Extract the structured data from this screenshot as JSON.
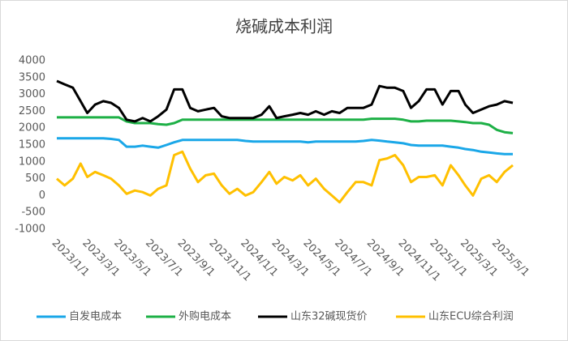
{
  "chart_data": {
    "type": "line",
    "title": "烧碱成本利润",
    "x": [
      "2023/1/1",
      "2023/1/16",
      "2023/2/1",
      "2023/2/16",
      "2023/3/1",
      "2023/3/16",
      "2023/4/1",
      "2023/4/16",
      "2023/5/1",
      "2023/5/16",
      "2023/6/1",
      "2023/6/16",
      "2023/7/1",
      "2023/7/16",
      "2023/8/1",
      "2023/8/16",
      "2023/9/1",
      "2023/9/16",
      "2023/10/1",
      "2023/10/16",
      "2023/11/1",
      "2023/11/16",
      "2023/12/1",
      "2023/12/16",
      "2024/1/1",
      "2024/1/16",
      "2024/2/1",
      "2024/2/16",
      "2024/3/1",
      "2024/3/16",
      "2024/4/1",
      "2024/4/16",
      "2024/5/1",
      "2024/5/16",
      "2024/6/1",
      "2024/6/16",
      "2024/7/1",
      "2024/7/16",
      "2024/8/1",
      "2024/8/16",
      "2024/9/1",
      "2024/9/16",
      "2024/10/1",
      "2024/10/16",
      "2024/11/1",
      "2024/11/16",
      "2024/12/1",
      "2024/12/16",
      "2025/1/1",
      "2025/1/16",
      "2025/2/1",
      "2025/2/16",
      "2025/3/1",
      "2025/3/16",
      "2025/4/1",
      "2025/4/16",
      "2025/5/1",
      "2025/5/16",
      "2025/6/1"
    ],
    "series": [
      {
        "name": "自发电成本",
        "color": "#1aa7e8",
        "values": [
          1700,
          1700,
          1700,
          1700,
          1700,
          1700,
          1700,
          1680,
          1650,
          1450,
          1450,
          1480,
          1450,
          1420,
          1500,
          1580,
          1650,
          1650,
          1650,
          1650,
          1650,
          1650,
          1650,
          1650,
          1620,
          1600,
          1600,
          1600,
          1600,
          1600,
          1600,
          1600,
          1580,
          1600,
          1600,
          1600,
          1600,
          1600,
          1600,
          1620,
          1650,
          1630,
          1600,
          1580,
          1550,
          1500,
          1480,
          1480,
          1480,
          1480,
          1450,
          1420,
          1380,
          1350,
          1300,
          1280,
          1250,
          1230,
          1230
        ]
      },
      {
        "name": "外购电成本",
        "color": "#1db046",
        "values": [
          2320,
          2320,
          2320,
          2320,
          2320,
          2320,
          2320,
          2320,
          2320,
          2200,
          2150,
          2150,
          2150,
          2120,
          2100,
          2150,
          2250,
          2250,
          2250,
          2250,
          2250,
          2250,
          2250,
          2250,
          2250,
          2250,
          2250,
          2250,
          2250,
          2250,
          2250,
          2250,
          2250,
          2250,
          2250,
          2250,
          2250,
          2250,
          2250,
          2250,
          2280,
          2280,
          2280,
          2280,
          2250,
          2200,
          2200,
          2220,
          2220,
          2220,
          2220,
          2200,
          2180,
          2150,
          2150,
          2100,
          1950,
          1880,
          1850
        ]
      },
      {
        "name": "山东32碱现货价",
        "color": "#000000",
        "values": [
          3400,
          3300,
          3200,
          2800,
          2450,
          2700,
          2800,
          2750,
          2600,
          2250,
          2200,
          2300,
          2200,
          2350,
          2550,
          3150,
          3150,
          2600,
          2500,
          2550,
          2600,
          2350,
          2300,
          2300,
          2300,
          2300,
          2400,
          2650,
          2300,
          2350,
          2400,
          2450,
          2400,
          2500,
          2400,
          2500,
          2450,
          2600,
          2600,
          2600,
          2700,
          3250,
          3200,
          3200,
          3100,
          2600,
          2800,
          3150,
          3150,
          2700,
          3100,
          3100,
          2700,
          2450,
          2550,
          2650,
          2700,
          2800,
          2750
        ]
      },
      {
        "name": "山东ECU综合利润",
        "color": "#ffc000",
        "values": [
          500,
          300,
          500,
          950,
          550,
          700,
          600,
          500,
          300,
          50,
          150,
          100,
          0,
          200,
          300,
          1200,
          1300,
          800,
          400,
          600,
          650,
          300,
          50,
          200,
          0,
          100,
          400,
          700,
          350,
          550,
          450,
          600,
          300,
          500,
          200,
          0,
          -200,
          100,
          400,
          400,
          300,
          1050,
          1100,
          1200,
          900,
          400,
          550,
          550,
          600,
          300,
          900,
          600,
          300,
          0,
          500,
          600,
          400,
          700,
          900
        ]
      }
    ],
    "xlim": [
      "2023/1/1",
      "2025/6/1"
    ],
    "xticks": [
      "2023/1/1",
      "2023/3/1",
      "2023/5/1",
      "2023/7/1",
      "2023/9/1",
      "2023/11/1",
      "2024/1/1",
      "2024/3/1",
      "2024/5/1",
      "2024/7/1",
      "2024/9/1",
      "2024/11/1",
      "2025/1/1",
      "2025/3/1",
      "2025/5/1"
    ],
    "ylim": [
      -1000,
      4000
    ],
    "yticks": [
      -1000,
      -500,
      0,
      500,
      1000,
      1500,
      2000,
      2500,
      3000,
      3500,
      4000
    ],
    "grid": false
  }
}
